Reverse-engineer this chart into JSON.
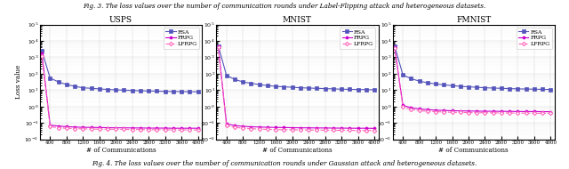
{
  "subplots": [
    {
      "title": "USPS",
      "RSA_x": [
        200,
        400,
        600,
        800,
        1000,
        1200,
        1400,
        1600,
        1800,
        2000,
        2200,
        2400,
        2600,
        2800,
        3000,
        3200,
        3400,
        3600,
        3800,
        4000
      ],
      "RSA_y": [
        2500,
        55,
        32,
        22,
        17,
        14,
        13,
        12,
        11,
        10.5,
        10,
        9.5,
        9.2,
        8.9,
        8.7,
        8.5,
        8.3,
        8.2,
        8.1,
        8.0
      ],
      "FRPG_x": [
        200,
        400,
        600,
        800,
        1000,
        1200,
        1400,
        1600,
        1800,
        2000,
        2200,
        2400,
        2600,
        2800,
        3000,
        3200,
        3400,
        3600,
        3800,
        4000
      ],
      "FRPG_y": [
        1800,
        0.075,
        0.065,
        0.06,
        0.057,
        0.055,
        0.054,
        0.053,
        0.052,
        0.051,
        0.051,
        0.05,
        0.05,
        0.049,
        0.049,
        0.049,
        0.048,
        0.048,
        0.048,
        0.048
      ],
      "LFRPG_x": [
        200,
        400,
        600,
        800,
        1000,
        1200,
        1400,
        1600,
        1800,
        2000,
        2200,
        2400,
        2600,
        2800,
        3000,
        3200,
        3400,
        3600,
        3800,
        4000
      ],
      "LFRPG_y": [
        1200,
        0.06,
        0.052,
        0.048,
        0.046,
        0.044,
        0.043,
        0.042,
        0.042,
        0.041,
        0.041,
        0.04,
        0.04,
        0.039,
        0.039,
        0.039,
        0.038,
        0.038,
        0.038,
        0.038
      ]
    },
    {
      "title": "MNIST",
      "RSA_x": [
        200,
        400,
        600,
        800,
        1000,
        1200,
        1400,
        1600,
        1800,
        2000,
        2200,
        2400,
        2600,
        2800,
        3000,
        3200,
        3400,
        3600,
        3800,
        4000
      ],
      "RSA_y": [
        5000,
        80,
        45,
        32,
        26,
        22,
        19,
        17,
        16,
        15,
        14,
        13.5,
        13,
        12.5,
        12,
        11.5,
        11.2,
        11,
        10.8,
        10.5
      ],
      "FRPG_x": [
        200,
        400,
        600,
        800,
        1000,
        1200,
        1400,
        1600,
        1800,
        2000,
        2200,
        2400,
        2600,
        2800,
        3000,
        3200,
        3400,
        3600,
        3800,
        4000
      ],
      "FRPG_y": [
        4500,
        0.09,
        0.07,
        0.063,
        0.059,
        0.057,
        0.055,
        0.054,
        0.053,
        0.052,
        0.051,
        0.051,
        0.05,
        0.05,
        0.049,
        0.049,
        0.048,
        0.048,
        0.048,
        0.047
      ],
      "LFRPG_x": [
        200,
        400,
        600,
        800,
        1000,
        1200,
        1400,
        1600,
        1800,
        2000,
        2200,
        2400,
        2600,
        2800,
        3000,
        3200,
        3400,
        3600,
        3800,
        4000
      ],
      "LFRPG_y": [
        4000,
        0.07,
        0.055,
        0.048,
        0.045,
        0.043,
        0.041,
        0.04,
        0.039,
        0.039,
        0.038,
        0.038,
        0.037,
        0.037,
        0.036,
        0.036,
        0.036,
        0.035,
        0.035,
        0.035
      ]
    },
    {
      "title": "FMNIST",
      "RSA_x": [
        200,
        400,
        600,
        800,
        1000,
        1200,
        1400,
        1600,
        1800,
        2000,
        2200,
        2400,
        2600,
        2800,
        3000,
        3200,
        3400,
        3600,
        3800,
        4000
      ],
      "RSA_y": [
        5000,
        85,
        50,
        36,
        28,
        24,
        21,
        19,
        17,
        16,
        15,
        14,
        13.5,
        13,
        12.5,
        12,
        11.8,
        11.5,
        11.2,
        11
      ],
      "FRPG_x": [
        200,
        400,
        600,
        800,
        1000,
        1200,
        1400,
        1600,
        1800,
        2000,
        2200,
        2400,
        2600,
        2800,
        3000,
        3200,
        3400,
        3600,
        3800,
        4000
      ],
      "FRPG_y": [
        4000,
        1.2,
        0.85,
        0.72,
        0.65,
        0.61,
        0.58,
        0.56,
        0.55,
        0.54,
        0.53,
        0.52,
        0.52,
        0.51,
        0.51,
        0.5,
        0.5,
        0.5,
        0.49,
        0.49
      ],
      "LFRPG_x": [
        200,
        400,
        600,
        800,
        1000,
        1200,
        1400,
        1600,
        1800,
        2000,
        2200,
        2400,
        2600,
        2800,
        3000,
        3200,
        3400,
        3600,
        3800,
        4000
      ],
      "LFRPG_y": [
        3500,
        0.95,
        0.68,
        0.57,
        0.52,
        0.49,
        0.47,
        0.45,
        0.44,
        0.43,
        0.43,
        0.42,
        0.42,
        0.41,
        0.41,
        0.4,
        0.4,
        0.4,
        0.39,
        0.39
      ]
    }
  ],
  "RSA_color": "#5555bb",
  "FRPG_color": "#cc00cc",
  "LFRPG_color": "#ff66bb",
  "xlabel": "# of Communications",
  "ylabel": "Loss value",
  "xticks": [
    400,
    800,
    1200,
    1600,
    2000,
    2400,
    2800,
    3200,
    3600,
    4000
  ],
  "xlim": [
    150,
    4100
  ],
  "ylim_bottom": 0.01,
  "ylim_top": 100000,
  "caption_top": "Fig. 3. The loss values over the number of communication rounds under Label-Flipping attack and heterogeneous datasets.",
  "caption_bottom": "Fig. 4. The loss values over the number of communication rounds under Gaussian attack and heterogeneous datasets."
}
